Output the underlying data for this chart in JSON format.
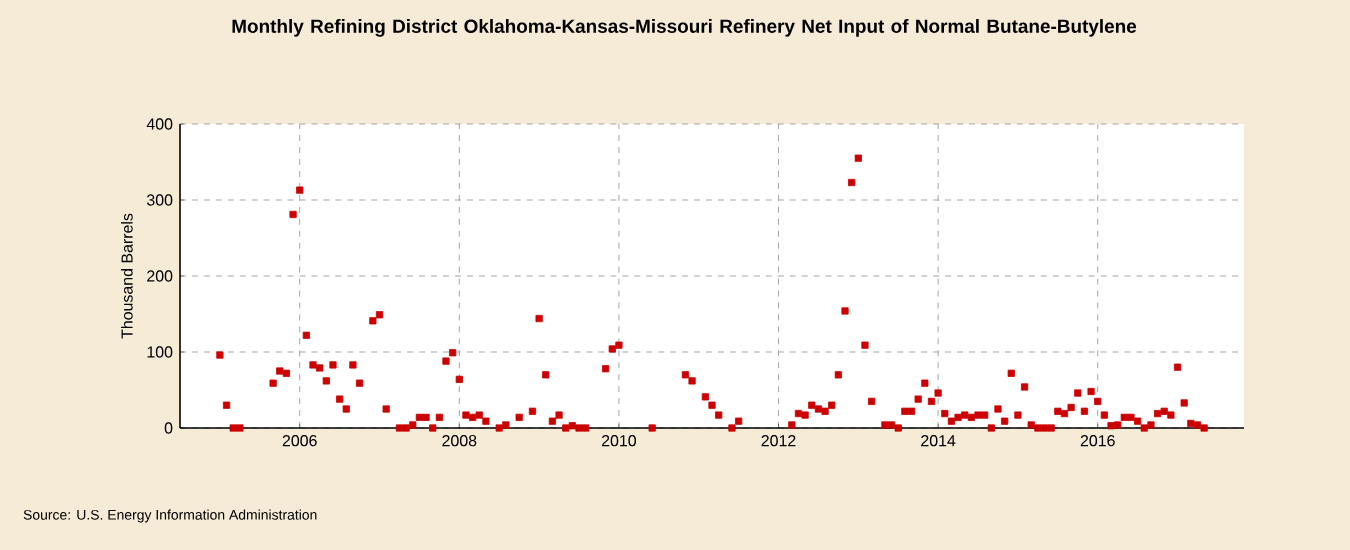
{
  "chart_data": {
    "type": "scatter",
    "title": "Monthly Refining District Oklahoma-Kansas-Missouri Refinery Net Input of Normal Butane-Butylene",
    "ylabel": "Thousand Barrels",
    "annotations": [
      "Source: U.S. Energy Information Administration"
    ],
    "xlim": [
      "2004-07",
      "2017-11"
    ],
    "xticks": [
      "2006",
      "2008",
      "2010",
      "2012",
      "2014",
      "2016"
    ],
    "ylim": [
      0,
      400
    ],
    "yticks": [
      0,
      100,
      200,
      300,
      400
    ],
    "grid": true,
    "marker": "square",
    "series": [
      {
        "color": "#cc0000",
        "x": [
          "2005-01",
          "2005-02",
          "2005-03",
          "2005-04",
          "2005-09",
          "2005-10",
          "2005-11",
          "2005-12",
          "2006-01",
          "2006-02",
          "2006-03",
          "2006-04",
          "2006-05",
          "2006-06",
          "2006-07",
          "2006-08",
          "2006-09",
          "2006-10",
          "2006-12",
          "2007-01",
          "2007-02",
          "2007-04",
          "2007-05",
          "2007-06",
          "2007-07",
          "2007-08",
          "2007-09",
          "2007-10",
          "2007-11",
          "2007-12",
          "2008-01",
          "2008-02",
          "2008-03",
          "2008-04",
          "2008-05",
          "2008-07",
          "2008-08",
          "2008-10",
          "2008-12",
          "2009-01",
          "2009-02",
          "2009-03",
          "2009-04",
          "2009-05",
          "2009-06",
          "2009-07",
          "2009-08",
          "2009-11",
          "2009-12",
          "2010-01",
          "2010-06",
          "2010-11",
          "2010-12",
          "2011-02",
          "2011-03",
          "2011-04",
          "2011-06",
          "2011-07",
          "2012-03",
          "2012-04",
          "2012-05",
          "2012-06",
          "2012-07",
          "2012-08",
          "2012-09",
          "2012-10",
          "2012-11",
          "2012-12",
          "2013-01",
          "2013-02",
          "2013-03",
          "2013-05",
          "2013-06",
          "2013-07",
          "2013-08",
          "2013-09",
          "2013-10",
          "2013-11",
          "2013-12",
          "2014-01",
          "2014-02",
          "2014-03",
          "2014-04",
          "2014-05",
          "2014-06",
          "2014-07",
          "2014-08",
          "2014-09",
          "2014-10",
          "2014-11",
          "2014-12",
          "2015-01",
          "2015-02",
          "2015-03",
          "2015-04",
          "2015-05",
          "2015-06",
          "2015-07",
          "2015-08",
          "2015-09",
          "2015-10",
          "2015-11",
          "2015-12",
          "2016-01",
          "2016-02",
          "2016-03",
          "2016-04",
          "2016-05",
          "2016-06",
          "2016-07",
          "2016-08",
          "2016-09",
          "2016-10",
          "2016-11",
          "2016-12",
          "2017-01",
          "2017-02",
          "2017-03",
          "2017-04",
          "2017-05"
        ],
        "values": [
          96,
          30,
          0,
          0,
          59,
          75,
          72,
          281,
          313,
          122,
          83,
          79,
          62,
          83,
          38,
          25,
          83,
          59,
          141,
          149,
          25,
          0,
          0,
          4,
          14,
          14,
          0,
          14,
          88,
          99,
          64,
          17,
          14,
          17,
          9,
          0,
          4,
          14,
          22,
          144,
          70,
          9,
          17,
          0,
          3,
          0,
          0,
          78,
          104,
          109,
          0,
          70,
          62,
          41,
          30,
          17,
          0,
          9,
          4,
          19,
          17,
          30,
          25,
          22,
          30,
          70,
          154,
          323,
          355,
          109,
          35,
          4,
          4,
          0,
          22,
          22,
          38,
          59,
          35,
          46,
          19,
          9,
          14,
          17,
          14,
          17,
          17,
          0,
          25,
          9,
          72,
          17,
          54,
          4,
          0,
          0,
          0,
          22,
          19,
          27,
          46,
          22,
          48,
          35,
          17,
          3,
          4,
          14,
          14,
          9,
          0,
          4,
          19,
          22,
          17,
          80,
          33,
          6,
          4,
          0
        ]
      }
    ]
  }
}
